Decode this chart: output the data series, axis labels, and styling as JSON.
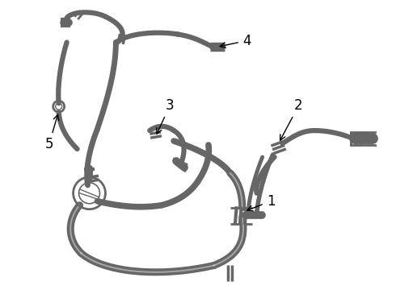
{
  "background_color": "#ffffff",
  "line_color": "#666666",
  "label_color": "#000000",
  "hose_lw": 3.5,
  "thin_lw": 1.2,
  "band_color": "#888888",
  "fitting_color": "#aaaaaa"
}
